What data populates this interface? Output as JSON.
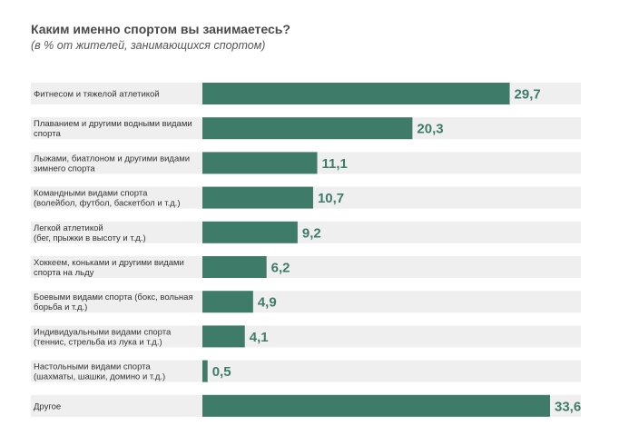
{
  "chart_data": {
    "type": "bar",
    "orientation": "horizontal",
    "title": "Каким именно спортом вы занимаетесь?",
    "subtitle": "(в % от жителей, занимающихся спортом)",
    "xlabel": "",
    "ylabel": "",
    "xlim": [
      0,
      33.6
    ],
    "grid": false,
    "categories": [
      [
        "Фитнесом и тяжелой атлетикой"
      ],
      [
        "Плаванием и другими водными видами",
        "спорта"
      ],
      [
        "Лыжами, биатлоном и другими видами",
        "зимнего спорта"
      ],
      [
        "Командными видами спорта",
        "(волейбол, футбол, баскетбол и т.д.)"
      ],
      [
        "Легкой атлетикой",
        "(бег, прыжки в высоту и т.д.)"
      ],
      [
        "Хоккеем, коньками и другими видами",
        "спорта на льду"
      ],
      [
        "Боевыми видами спорта (бокс, вольная",
        "борьба и т.д.)"
      ],
      [
        "Индивидуальными видами спорта",
        "(теннис, стрельба из лука и т.д.)"
      ],
      [
        "Настольными видами спорта",
        "(шахматы, шашки, домино и т.д.)"
      ],
      [
        "Другое"
      ]
    ],
    "values": [
      29.7,
      20.3,
      11.1,
      10.7,
      9.2,
      6.2,
      4.9,
      4.1,
      0.5,
      33.6
    ],
    "value_labels": [
      "29,7",
      "20,3",
      "11,1",
      "10,7",
      "9,2",
      "6,2",
      "4,9",
      "4,1",
      "0,5",
      "33,6"
    ],
    "colors": {
      "bar": "#3f7b69",
      "track": "#efefef",
      "value_text": "#3f7b69"
    }
  }
}
